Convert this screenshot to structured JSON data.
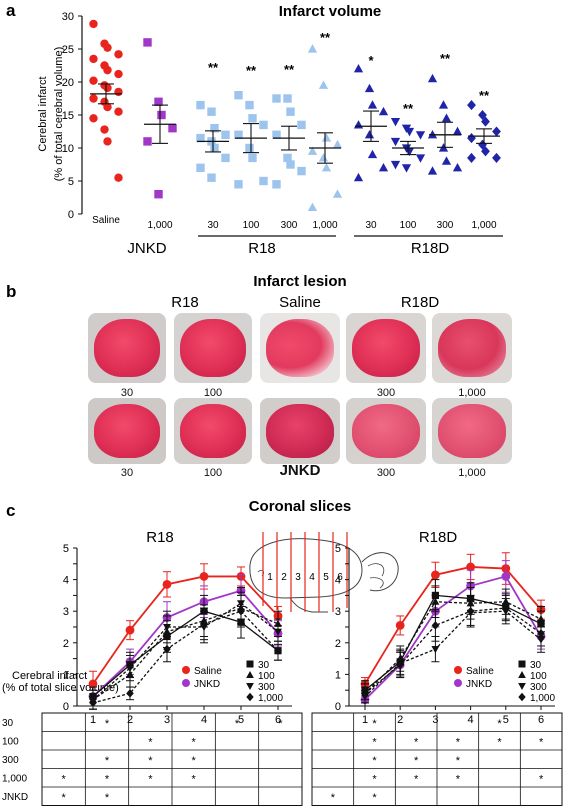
{
  "panel_a": {
    "letter": "a",
    "title": "Infarct volume",
    "ylabel_line1": "Cerebral infarct",
    "ylabel_line2": "(% of total cerebral volume)",
    "groups": [
      "JNKD",
      "R18",
      "R18D"
    ],
    "tick_labels": [
      "Saline",
      "1,000",
      "30",
      "100",
      "300",
      "1,000",
      "30",
      "100",
      "300",
      "1,000"
    ]
  },
  "panel_b": {
    "letter": "b",
    "title": "Infarct lesion",
    "top_headers": [
      "R18",
      "Saline",
      "R18D"
    ],
    "row1_labels": [
      "30",
      "100",
      "300",
      "1,000"
    ],
    "row2_labels": [
      "30",
      "100",
      "JNKD",
      "300",
      "1,000"
    ]
  },
  "panel_c": {
    "letter": "c",
    "title": "Coronal slices",
    "left_title": "R18",
    "right_title": "R18D",
    "ylabel_line1": "Cerebral infarct",
    "ylabel_line2": "(% of total slice volume)",
    "diagram_numbers": [
      "1",
      "2",
      "3",
      "4",
      "5",
      "6"
    ],
    "legend_left": [
      "Saline",
      "JNKD"
    ],
    "legend_right": [
      "30",
      "100",
      "300",
      "1,000"
    ],
    "row_labels": [
      "30",
      "100",
      "300",
      "1,000",
      "JNKD"
    ],
    "sig_mark": "*",
    "table_left": [
      [
        0,
        1,
        0,
        0,
        1,
        1
      ],
      [
        0,
        0,
        1,
        1,
        0,
        0
      ],
      [
        0,
        1,
        1,
        1,
        0,
        0
      ],
      [
        1,
        1,
        1,
        1,
        0,
        0
      ],
      [
        1,
        1,
        0,
        0,
        0,
        0
      ]
    ],
    "table_right": [
      [
        0,
        1,
        0,
        0,
        1,
        0
      ],
      [
        0,
        1,
        1,
        1,
        1,
        1
      ],
      [
        0,
        1,
        1,
        1,
        0,
        0
      ],
      [
        0,
        1,
        1,
        1,
        0,
        1
      ],
      [
        1,
        1,
        0,
        0,
        0,
        0
      ]
    ]
  },
  "colors": {
    "saline": "#e8241c",
    "jnkd": "#a236c8",
    "r18": "#9cc4ec",
    "r18d": "#1f24a8",
    "dose": "#111111"
  },
  "chart_data": [
    {
      "type": "scatter",
      "title": "Infarct volume",
      "ylabel": "Cerebral infarct (% of total cerebral volume)",
      "ylim": [
        0,
        30
      ],
      "yticks": [
        0,
        5,
        10,
        15,
        20,
        25,
        30
      ],
      "categories": [
        "Saline",
        "1,000",
        "30",
        "100",
        "300",
        "1,000",
        "30",
        "100",
        "300",
        "1,000"
      ],
      "groups": [
        "JNKD",
        "R18",
        "R18D"
      ],
      "series": [
        {
          "category": "Saline",
          "marker": "circle",
          "color": "#e8241c",
          "mean": 18.2,
          "sem": 1.5,
          "values": [
            28.8,
            25.8,
            25.2,
            24.2,
            23.5,
            22.5,
            21.8,
            21.2,
            20.2,
            19.5,
            19.1,
            18.5,
            17.5,
            17.0,
            16.2,
            15.5,
            14.5,
            12.8,
            11.0,
            5.5
          ]
        },
        {
          "category": "1,000",
          "group": "JNKD",
          "marker": "square",
          "color": "#a236c8",
          "mean": 13.6,
          "sem": 2.9,
          "sig": "",
          "values": [
            26.0,
            17.0,
            15.0,
            13.0,
            11.0,
            3.0
          ]
        },
        {
          "category": "30",
          "group": "R18",
          "marker": "square",
          "color": "#9cc4ec",
          "mean": 11.0,
          "sem": 1.6,
          "sig": "**",
          "values": [
            16.5,
            15.5,
            13.0,
            12.0,
            11.5,
            11.0,
            10.0,
            8.5,
            7.0,
            5.5
          ]
        },
        {
          "category": "100",
          "group": "R18",
          "marker": "square",
          "color": "#9cc4ec",
          "mean": 11.5,
          "sem": 2.2,
          "sig": "**",
          "values": [
            18.0,
            16.5,
            14.5,
            13.5,
            12.0,
            10.0,
            8.5,
            5.0,
            4.5
          ]
        },
        {
          "category": "300",
          "group": "R18",
          "marker": "square",
          "color": "#9cc4ec",
          "mean": 11.5,
          "sem": 1.8,
          "sig": "**",
          "values": [
            17.5,
            17.5,
            15.5,
            13.5,
            12.0,
            8.5,
            7.5,
            6.5,
            4.5
          ]
        },
        {
          "category": "1,000",
          "group": "R18",
          "marker": "triangle-up",
          "color": "#9cc4ec",
          "mean": 10.0,
          "sem": 2.3,
          "sig": "**",
          "values": [
            25.0,
            19.5,
            11.5,
            10.5,
            9.5,
            8.5,
            7.0,
            3.0,
            1.0
          ]
        },
        {
          "category": "30",
          "group": "R18D",
          "marker": "triangle-up",
          "color": "#1f24a8",
          "mean": 13.3,
          "sem": 2.3,
          "sig": "*",
          "values": [
            22.0,
            19.0,
            16.5,
            15.5,
            13.5,
            12.0,
            9.0,
            7.0,
            5.5
          ]
        },
        {
          "category": "100",
          "group": "R18D",
          "marker": "triangle-down",
          "color": "#1f24a8",
          "mean": 10.0,
          "sem": 1.0,
          "sig": "**",
          "values": [
            14.0,
            13.0,
            12.5,
            12.0,
            11.0,
            10.0,
            9.5,
            8.5,
            7.5,
            7.0
          ]
        },
        {
          "category": "300",
          "group": "R18D",
          "marker": "triangle-up",
          "color": "#1f24a8",
          "mean": 12.0,
          "sem": 1.9,
          "sig": "**",
          "values": [
            20.5,
            16.5,
            14.5,
            12.5,
            12.0,
            10.0,
            8.0,
            7.0,
            6.5
          ]
        },
        {
          "category": "1,000",
          "group": "R18D",
          "marker": "diamond",
          "color": "#1f24a8",
          "mean": 11.8,
          "sem": 1.1,
          "sig": "**",
          "values": [
            16.5,
            15.0,
            14.0,
            12.5,
            11.5,
            10.5,
            9.5,
            8.5,
            8.5
          ]
        }
      ]
    },
    {
      "type": "line",
      "title": "R18",
      "ylabel": "Cerebral infarct (% of total slice volume)",
      "x": [
        1,
        2,
        3,
        4,
        5,
        6
      ],
      "ylim": [
        0,
        5
      ],
      "yticks": [
        0,
        0.5,
        1,
        1.5,
        2,
        2.5,
        3,
        3.5,
        4,
        4.5,
        5
      ],
      "legend": "bottom",
      "series": [
        {
          "name": "Saline",
          "marker": "circle",
          "color": "#e8241c",
          "style": "solid",
          "values": [
            0.7,
            2.4,
            3.85,
            4.1,
            4.1,
            2.85
          ],
          "err": [
            0.4,
            0.3,
            0.4,
            0.4,
            0.3,
            0.3
          ]
        },
        {
          "name": "JNKD",
          "marker": "circle",
          "color": "#a236c8",
          "style": "solid",
          "values": [
            0.3,
            1.4,
            2.8,
            3.3,
            3.65,
            2.3
          ],
          "err": [
            0.3,
            0.4,
            0.5,
            0.5,
            0.5,
            0.4
          ]
        },
        {
          "name": "30",
          "marker": "square",
          "color": "#111111",
          "style": "solid",
          "values": [
            0.3,
            1.3,
            2.2,
            3.0,
            2.65,
            1.75
          ],
          "err": [
            0.3,
            0.4,
            0.5,
            0.5,
            0.5,
            0.3
          ]
        },
        {
          "name": "100",
          "marker": "triangle-up",
          "color": "#111111",
          "style": "dashed",
          "values": [
            0.2,
            1.0,
            2.35,
            2.7,
            3.1,
            2.6
          ],
          "err": [
            0.3,
            0.4,
            0.5,
            0.5,
            0.5,
            0.4
          ]
        },
        {
          "name": "300",
          "marker": "triangle-down",
          "color": "#111111",
          "style": "dashed",
          "values": [
            0.2,
            1.2,
            2.5,
            2.5,
            3.25,
            2.35
          ],
          "err": [
            0.3,
            0.4,
            0.5,
            0.5,
            0.5,
            0.4
          ]
        },
        {
          "name": "1,000",
          "marker": "diamond",
          "color": "#111111",
          "style": "dashed",
          "values": [
            0.1,
            0.4,
            1.8,
            2.6,
            3.0,
            1.75
          ],
          "err": [
            0.2,
            0.2,
            0.4,
            0.5,
            0.5,
            0.3
          ]
        }
      ]
    },
    {
      "type": "line",
      "title": "R18D",
      "ylabel": "Cerebral infarct (% of total slice volume)",
      "x": [
        1,
        2,
        3,
        4,
        5,
        6
      ],
      "ylim": [
        0,
        5
      ],
      "yticks": [
        0,
        0.5,
        1,
        1.5,
        2,
        2.5,
        3,
        3.5,
        4,
        4.5,
        5
      ],
      "legend": "bottom",
      "series": [
        {
          "name": "Saline",
          "marker": "circle",
          "color": "#e8241c",
          "style": "solid",
          "values": [
            0.7,
            2.55,
            4.15,
            4.4,
            4.35,
            3.05
          ],
          "err": [
            0.2,
            0.3,
            0.4,
            0.4,
            0.5,
            0.3
          ]
        },
        {
          "name": "JNKD",
          "marker": "circle",
          "color": "#a236c8",
          "style": "solid",
          "values": [
            0.2,
            1.3,
            3.0,
            3.8,
            4.1,
            2.2
          ],
          "err": [
            0.2,
            0.4,
            0.5,
            0.5,
            0.5,
            0.4
          ]
        },
        {
          "name": "30",
          "marker": "square",
          "color": "#111111",
          "style": "solid",
          "values": [
            0.5,
            1.4,
            3.5,
            3.4,
            3.15,
            2.6
          ],
          "err": [
            0.3,
            0.4,
            0.5,
            0.5,
            0.4,
            0.4
          ]
        },
        {
          "name": "100",
          "marker": "triangle-up",
          "color": "#111111",
          "style": "dashed",
          "values": [
            0.4,
            1.5,
            3.3,
            3.25,
            3.3,
            2.75
          ],
          "err": [
            0.3,
            0.4,
            0.5,
            0.5,
            0.4,
            0.4
          ]
        },
        {
          "name": "300",
          "marker": "triangle-down",
          "color": "#111111",
          "style": "dashed",
          "values": [
            0.3,
            1.35,
            1.8,
            2.95,
            3.0,
            2.1
          ],
          "err": [
            0.3,
            0.4,
            0.4,
            0.4,
            0.4,
            0.4
          ]
        },
        {
          "name": "1,000",
          "marker": "diamond",
          "color": "#111111",
          "style": "dashed",
          "values": [
            0.4,
            1.3,
            2.55,
            3.0,
            3.1,
            2.3
          ],
          "err": [
            0.3,
            0.4,
            0.5,
            0.5,
            0.4,
            0.4
          ]
        }
      ]
    }
  ]
}
